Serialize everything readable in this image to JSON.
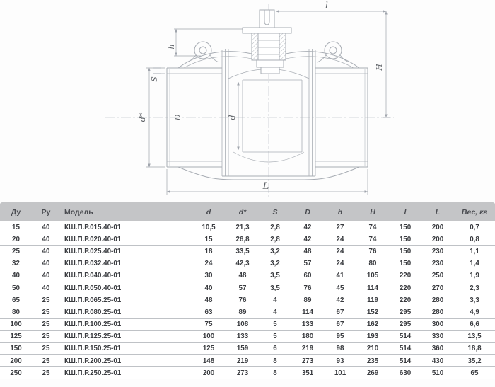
{
  "drawing": {
    "dimension_labels": {
      "h": "h",
      "S": "S",
      "d_star": "d*",
      "D": "D",
      "d": "d",
      "l": "l",
      "H": "H",
      "L": "L"
    }
  },
  "table": {
    "columns": [
      {
        "label": "Ду",
        "italic": false
      },
      {
        "label": "Ру",
        "italic": false
      },
      {
        "label": "Модель",
        "italic": false
      },
      {
        "label": "d",
        "italic": true
      },
      {
        "label": "d*",
        "italic": true
      },
      {
        "label": "S",
        "italic": true
      },
      {
        "label": "D",
        "italic": true
      },
      {
        "label": "h",
        "italic": true
      },
      {
        "label": "H",
        "italic": true
      },
      {
        "label": "l",
        "italic": true
      },
      {
        "label": "L",
        "italic": true
      },
      {
        "label": "Вес, кг",
        "italic": true
      }
    ],
    "rows": [
      [
        "15",
        "40",
        "КШ.П.Р.015.40-01",
        "10,5",
        "21,3",
        "2,8",
        "42",
        "27",
        "74",
        "150",
        "200",
        "0,7"
      ],
      [
        "20",
        "40",
        "КШ.П.Р.020.40-01",
        "15",
        "26,8",
        "2,8",
        "42",
        "24",
        "74",
        "150",
        "200",
        "0,8"
      ],
      [
        "25",
        "40",
        "КШ.П.Р.025.40-01",
        "18",
        "33,5",
        "3,2",
        "48",
        "24",
        "76",
        "150",
        "230",
        "1,1"
      ],
      [
        "32",
        "40",
        "КШ.П.Р.032.40-01",
        "24",
        "42,3",
        "3,2",
        "57",
        "24",
        "80",
        "150",
        "230",
        "1,4"
      ],
      [
        "40",
        "40",
        "КШ.П.Р.040.40-01",
        "30",
        "48",
        "3,5",
        "60",
        "41",
        "105",
        "220",
        "250",
        "1,9"
      ],
      [
        "50",
        "40",
        "КШ.П.Р.050.40-01",
        "40",
        "57",
        "3,5",
        "76",
        "45",
        "114",
        "220",
        "270",
        "2,3"
      ],
      [
        "65",
        "25",
        "КШ.П.Р.065.25-01",
        "48",
        "76",
        "4",
        "89",
        "42",
        "119",
        "220",
        "280",
        "3,3"
      ],
      [
        "80",
        "25",
        "КШ.П.Р.080.25-01",
        "63",
        "89",
        "4",
        "114",
        "67",
        "152",
        "295",
        "280",
        "4,9"
      ],
      [
        "100",
        "25",
        "КШ.П.Р.100.25-01",
        "75",
        "108",
        "5",
        "133",
        "67",
        "162",
        "295",
        "300",
        "6,6"
      ],
      [
        "125",
        "25",
        "КШ.П.Р.125.25-01",
        "100",
        "133",
        "5",
        "180",
        "95",
        "193",
        "514",
        "330",
        "13,5"
      ],
      [
        "150",
        "25",
        "КШ.П.Р.150.25-01",
        "125",
        "159",
        "6",
        "219",
        "98",
        "210",
        "514",
        "360",
        "18,8"
      ],
      [
        "200",
        "25",
        "КШ.П.Р.200.25-01",
        "148",
        "219",
        "8",
        "273",
        "93",
        "235",
        "514",
        "430",
        "35,2"
      ],
      [
        "250",
        "25",
        "КШ.П.Р.250.25-01",
        "200",
        "273",
        "8",
        "351",
        "101",
        "269",
        "630",
        "510",
        "65"
      ]
    ]
  },
  "colors": {
    "header_bg": "#c4c5c7",
    "row_border": "#bfc2c6",
    "text": "#3a3c40",
    "line": "#a8adb4",
    "dim": "#9fa4ac",
    "label": "#5d6166"
  }
}
